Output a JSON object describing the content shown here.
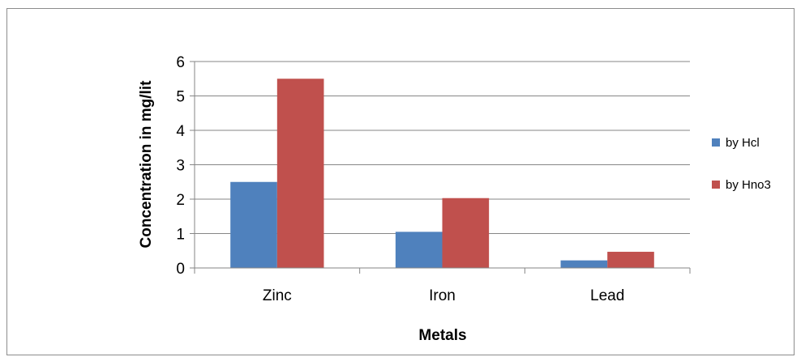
{
  "chart_data": {
    "type": "bar",
    "categories": [
      "Zinc",
      "Iron",
      "Lead"
    ],
    "series": [
      {
        "name": "by Hcl",
        "values": [
          2.5,
          1.05,
          0.22
        ],
        "color": "#4F81BD"
      },
      {
        "name": "by Hno3",
        "values": [
          5.5,
          2.03,
          0.47
        ],
        "color": "#C0504D"
      }
    ],
    "title": "",
    "xlabel": "Metals",
    "ylabel": "Concentration in mg/lit",
    "ylim": [
      0,
      6
    ],
    "yticks": [
      "0",
      "1",
      "2",
      "3",
      "4",
      "5",
      "6"
    ],
    "grid": true,
    "legend_position": "right"
  }
}
